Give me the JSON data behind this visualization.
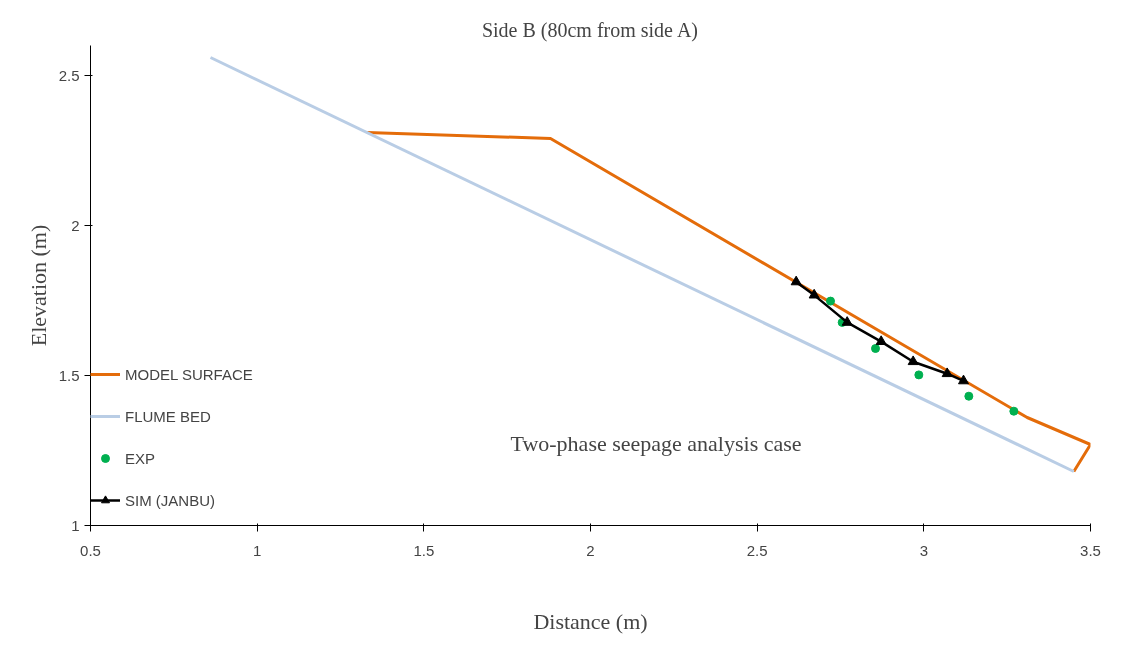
{
  "chart_data": {
    "type": "line",
    "title": "Side B (80cm from side A)",
    "xlabel": "Distance (m)",
    "ylabel": "Elevation (m)",
    "xlim": [
      0.5,
      3.5
    ],
    "ylim": [
      1,
      2.6
    ],
    "xticks": [
      0.5,
      1,
      1.5,
      2,
      2.5,
      3,
      3.5
    ],
    "yticks": [
      1,
      1.5,
      2,
      2.5
    ],
    "grid": false,
    "legend": "left",
    "annotations": [
      "Two-phase seepage analysis case"
    ],
    "series": [
      {
        "name": "MODEL SURFACE",
        "color": "#e46c0a",
        "marker": "none",
        "x": [
          1.33,
          1.88,
          3.31,
          3.5,
          3.45
        ],
        "values": [
          2.31,
          2.29,
          1.36,
          1.27,
          1.18
        ]
      },
      {
        "name": "FLUME BED",
        "color": "#b9cde5",
        "marker": "none",
        "x": [
          0.86,
          3.45
        ],
        "values": [
          2.56,
          1.18
        ]
      },
      {
        "name": "EXP",
        "type": "scatter",
        "color": "#00b050",
        "marker": "circle",
        "x": [
          2.72,
          2.755,
          2.855,
          2.985,
          3.135,
          3.27
        ],
        "values": [
          1.748,
          1.677,
          1.59,
          1.502,
          1.431,
          1.381
        ]
      },
      {
        "name": "SIM (JANBU)",
        "color": "#000000",
        "marker": "triangle",
        "x": [
          2.617,
          2.671,
          2.77,
          2.872,
          2.968,
          3.07,
          3.119
        ],
        "values": [
          1.812,
          1.768,
          1.677,
          1.613,
          1.546,
          1.506,
          1.482
        ]
      }
    ]
  }
}
